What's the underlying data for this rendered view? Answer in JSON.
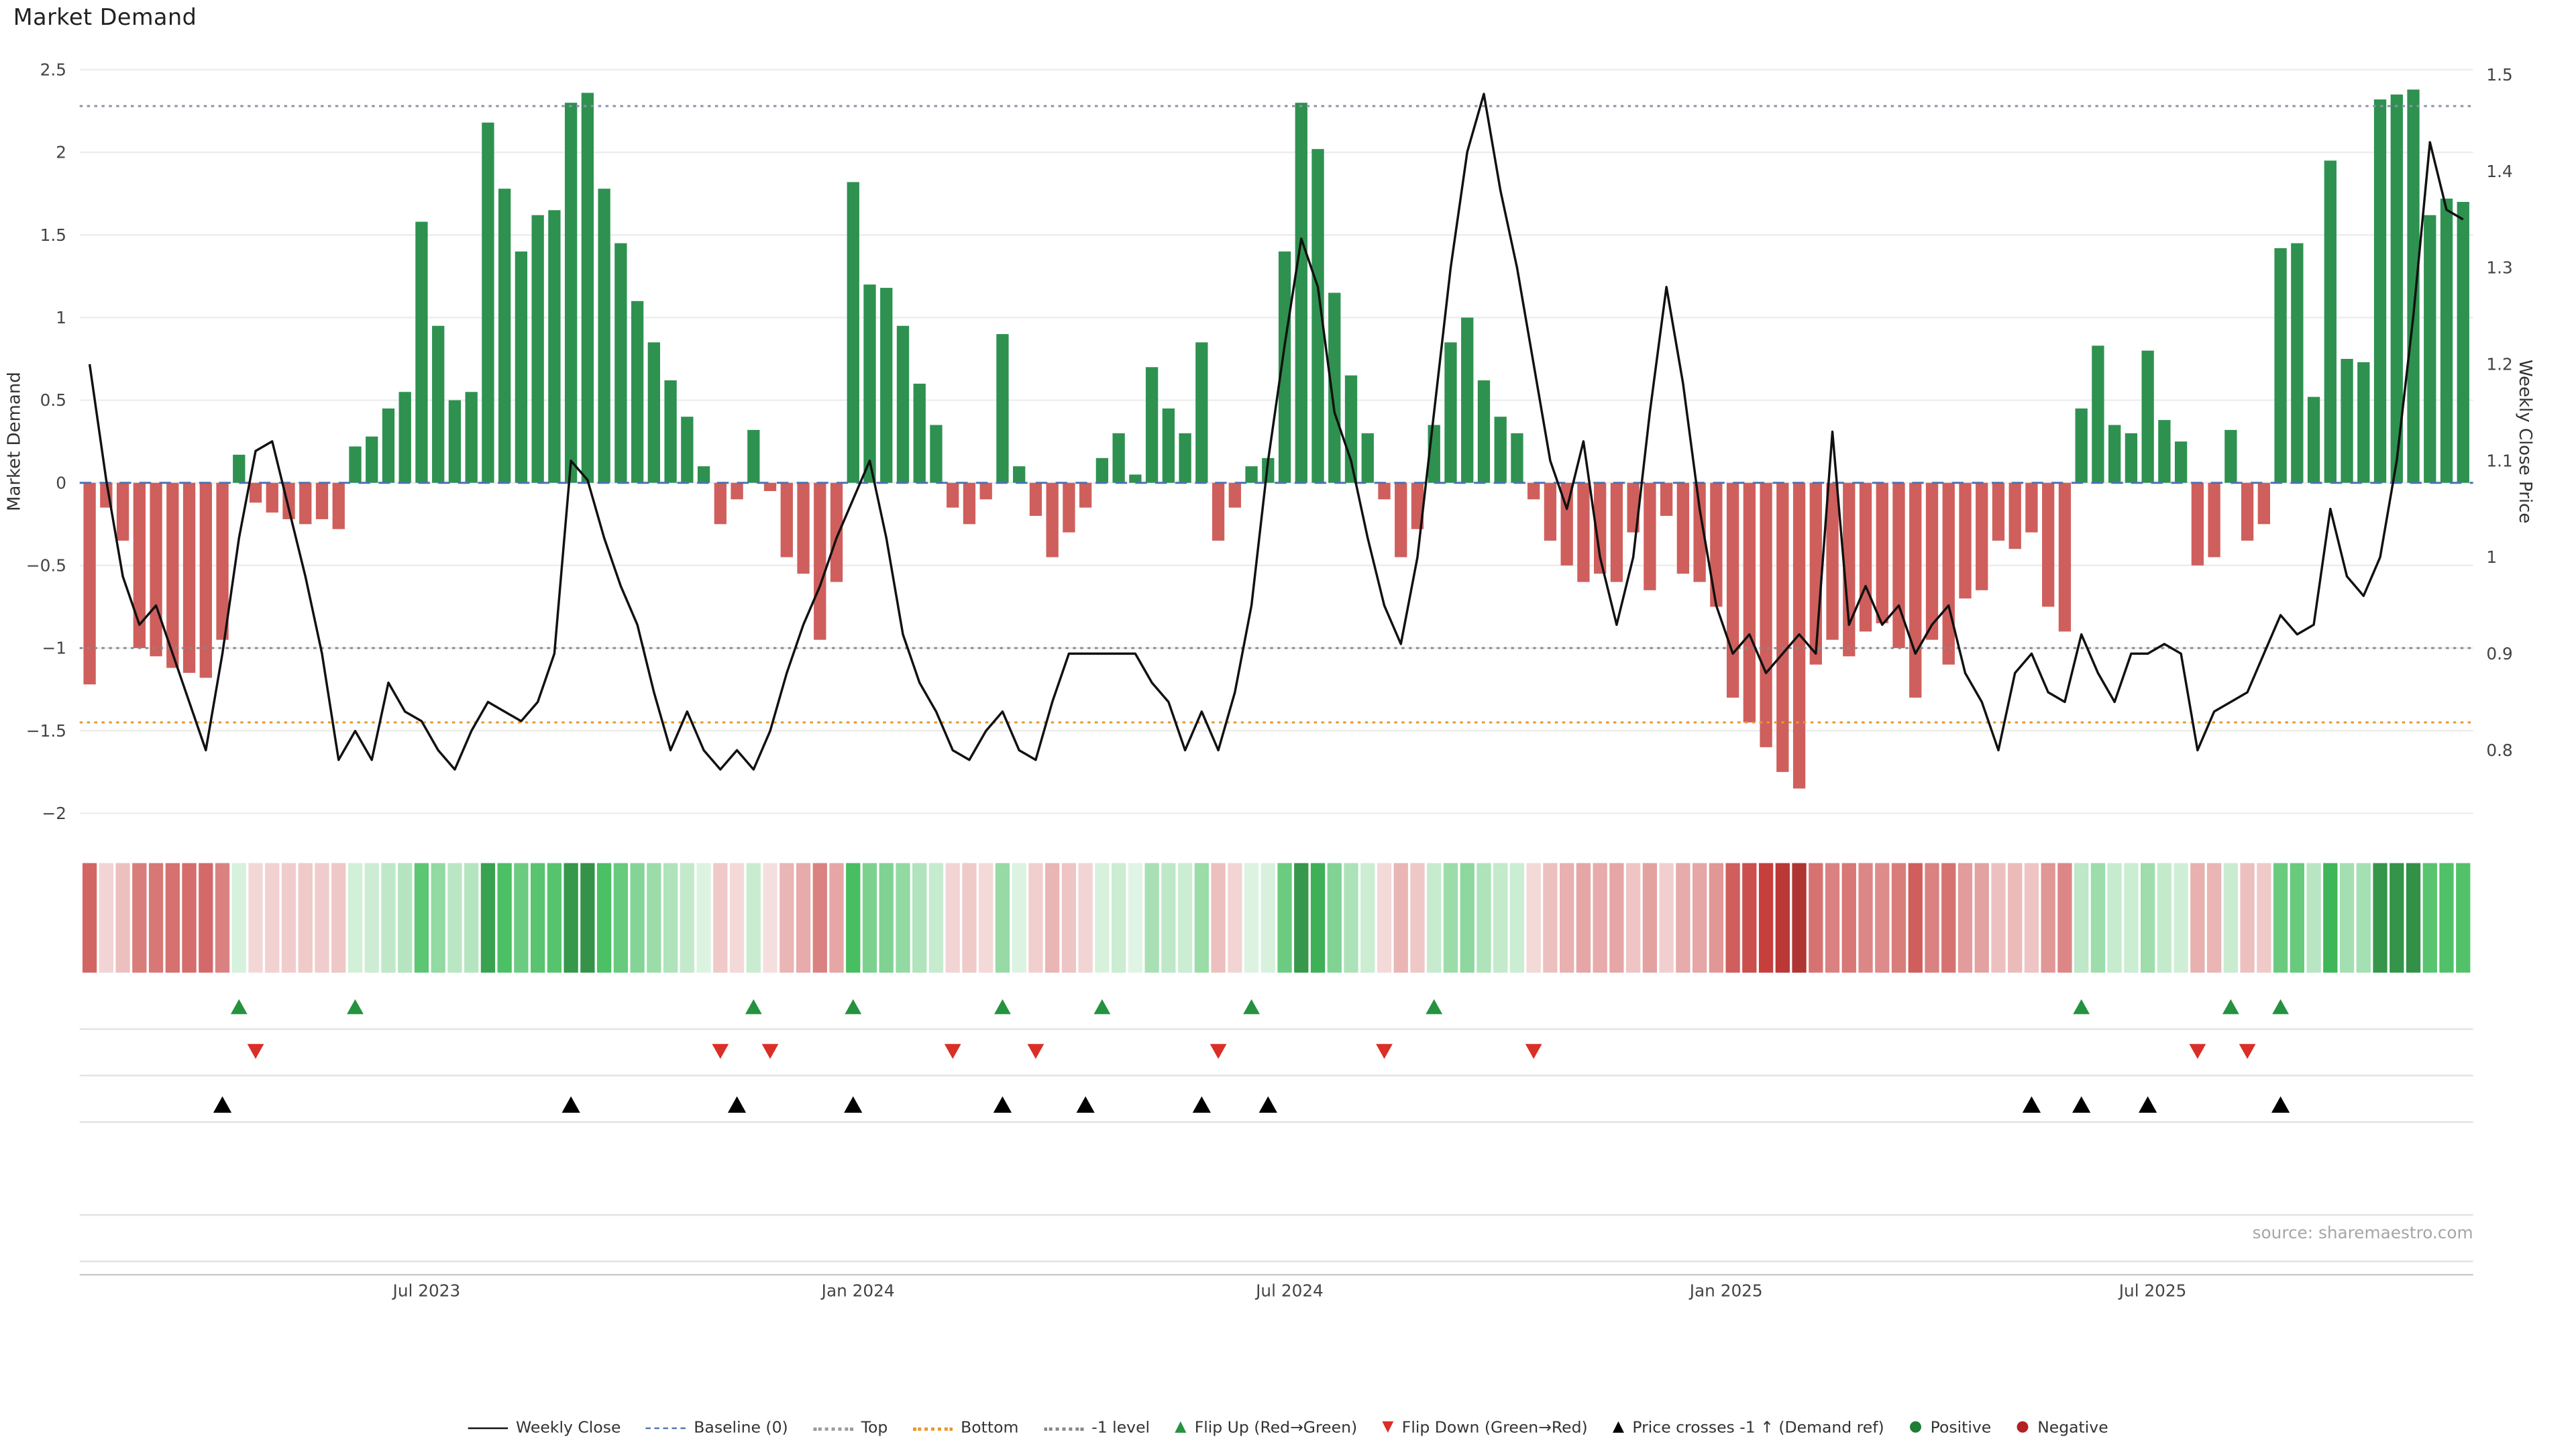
{
  "title": "Market Demand",
  "source": "source: sharemaestro.com",
  "axes": {
    "left_label": "Market Demand",
    "right_label": "Weekly Close Price",
    "left_ticks": [
      {
        "v": 2.5,
        "label": "2.5"
      },
      {
        "v": 2.0,
        "label": "2"
      },
      {
        "v": 1.5,
        "label": "1.5"
      },
      {
        "v": 1.0,
        "label": "1"
      },
      {
        "v": 0.5,
        "label": "0.5"
      },
      {
        "v": 0.0,
        "label": "0"
      },
      {
        "v": -0.5,
        "label": "−0.5"
      },
      {
        "v": -1.0,
        "label": "−1"
      },
      {
        "v": -1.5,
        "label": "−1.5"
      },
      {
        "v": -2.0,
        "label": "−2"
      }
    ],
    "right_ticks": [
      {
        "v": 1.5,
        "label": "1.5"
      },
      {
        "v": 1.4,
        "label": "1.4"
      },
      {
        "v": 1.3,
        "label": "1.3"
      },
      {
        "v": 1.2,
        "label": "1.2"
      },
      {
        "v": 1.1,
        "label": "1.1"
      },
      {
        "v": 1.0,
        "label": "1"
      },
      {
        "v": 0.9,
        "label": "0.9"
      },
      {
        "v": 0.8,
        "label": "0.8"
      }
    ],
    "x_ticks": [
      {
        "i": 20.3,
        "label": "Jul 2023"
      },
      {
        "i": 46.3,
        "label": "Jan 2024"
      },
      {
        "i": 72.3,
        "label": "Jul 2024"
      },
      {
        "i": 98.6,
        "label": "Jan 2025"
      },
      {
        "i": 124.3,
        "label": "Jul 2025"
      }
    ]
  },
  "chart_data": {
    "type": "bar+line",
    "title": "Market Demand",
    "n_weeks": 144,
    "left_axis": {
      "label": "Market Demand",
      "range": [
        -2.0,
        2.5
      ],
      "grid": true
    },
    "right_axis": {
      "label": "Weekly Close Price",
      "range": [
        0.735,
        1.505
      ]
    },
    "series": [
      {
        "name": "Market Demand",
        "type": "bar",
        "axis": "left",
        "values": [
          -1.22,
          -0.15,
          -0.35,
          -1.0,
          -1.05,
          -1.12,
          -1.15,
          -1.18,
          -0.95,
          0.17,
          -0.12,
          -0.18,
          -0.22,
          -0.25,
          -0.22,
          -0.28,
          0.22,
          0.28,
          0.45,
          0.55,
          1.58,
          0.95,
          0.5,
          0.55,
          2.18,
          1.78,
          1.4,
          1.62,
          1.65,
          2.3,
          2.36,
          1.78,
          1.45,
          1.1,
          0.85,
          0.62,
          0.4,
          0.1,
          -0.25,
          -0.1,
          0.32,
          -0.05,
          -0.45,
          -0.55,
          -0.95,
          -0.6,
          1.82,
          1.2,
          1.18,
          0.95,
          0.6,
          0.35,
          -0.15,
          -0.25,
          -0.1,
          0.9,
          0.1,
          -0.2,
          -0.45,
          -0.3,
          -0.15,
          0.15,
          0.3,
          0.05,
          0.7,
          0.45,
          0.3,
          0.85,
          -0.35,
          -0.15,
          0.1,
          0.15,
          1.4,
          2.3,
          2.02,
          1.15,
          0.65,
          0.3,
          -0.1,
          -0.45,
          -0.28,
          0.35,
          0.85,
          1.0,
          0.62,
          0.4,
          0.3,
          -0.1,
          -0.35,
          -0.5,
          -0.6,
          -0.55,
          -0.6,
          -0.3,
          -0.65,
          -0.2,
          -0.55,
          -0.6,
          -0.75,
          -1.3,
          -1.45,
          -1.6,
          -1.75,
          -1.85,
          -1.1,
          -0.95,
          -1.05,
          -0.9,
          -0.85,
          -1.0,
          -1.3,
          -0.95,
          -1.1,
          -0.7,
          -0.65,
          -0.35,
          -0.4,
          -0.3,
          -0.75,
          -0.9,
          0.45,
          0.83,
          0.35,
          0.3,
          0.8,
          0.38,
          0.25,
          -0.5,
          -0.45,
          0.32,
          -0.35,
          -0.25,
          1.42,
          1.45,
          0.52,
          1.95,
          0.75,
          0.73,
          2.32,
          2.35,
          2.38,
          1.62,
          1.72,
          1.7
        ]
      },
      {
        "name": "Weekly Close",
        "type": "line",
        "axis": "right",
        "values": [
          1.2,
          1.08,
          0.98,
          0.93,
          0.95,
          0.9,
          0.85,
          0.8,
          0.9,
          1.02,
          1.11,
          1.12,
          1.05,
          0.98,
          0.9,
          0.79,
          0.82,
          0.79,
          0.87,
          0.84,
          0.83,
          0.8,
          0.78,
          0.82,
          0.85,
          0.84,
          0.83,
          0.85,
          0.9,
          1.1,
          1.08,
          1.02,
          0.97,
          0.93,
          0.86,
          0.8,
          0.84,
          0.8,
          0.78,
          0.8,
          0.78,
          0.82,
          0.88,
          0.93,
          0.97,
          1.02,
          1.06,
          1.1,
          1.02,
          0.92,
          0.87,
          0.84,
          0.8,
          0.79,
          0.82,
          0.84,
          0.8,
          0.79,
          0.85,
          0.9,
          0.9,
          0.9,
          0.9,
          0.9,
          0.87,
          0.85,
          0.8,
          0.84,
          0.8,
          0.86,
          0.95,
          1.1,
          1.22,
          1.33,
          1.28,
          1.15,
          1.1,
          1.02,
          0.95,
          0.91,
          1.0,
          1.15,
          1.3,
          1.42,
          1.48,
          1.38,
          1.3,
          1.2,
          1.1,
          1.05,
          1.12,
          1.0,
          0.93,
          1.0,
          1.15,
          1.28,
          1.18,
          1.05,
          0.95,
          0.9,
          0.92,
          0.88,
          0.9,
          0.92,
          0.9,
          1.13,
          0.93,
          0.97,
          0.93,
          0.95,
          0.9,
          0.93,
          0.95,
          0.88,
          0.85,
          0.8,
          0.88,
          0.9,
          0.86,
          0.85,
          0.92,
          0.88,
          0.85,
          0.9,
          0.9,
          0.91,
          0.9,
          0.8,
          0.84,
          0.85,
          0.86,
          0.9,
          0.94,
          0.92,
          0.93,
          1.05,
          0.98,
          0.96,
          1.0,
          1.1,
          1.25,
          1.43,
          1.36,
          1.35
        ]
      }
    ],
    "ref_lines": [
      {
        "name": "Baseline (0)",
        "value": 0.0,
        "style": "dashed",
        "color": "#4c72b0"
      },
      {
        "name": "Top",
        "value": 2.28,
        "style": "dotted",
        "color": "#9090a8"
      },
      {
        "name": "Bottom",
        "value": -1.45,
        "style": "dotted",
        "color": "#e8972e"
      },
      {
        "name": "-1 level",
        "value": -1.0,
        "style": "dotted",
        "color": "#888888"
      }
    ],
    "markers": {
      "flip_up_weeks": [
        9,
        16,
        40,
        46,
        55,
        61,
        70,
        81,
        120,
        129,
        132
      ],
      "flip_down_weeks": [
        10,
        38,
        41,
        52,
        57,
        68,
        78,
        87,
        127,
        130
      ],
      "price_cross_weeks": [
        8,
        29,
        39,
        46,
        55,
        60,
        67,
        71,
        117,
        120,
        124,
        132
      ]
    },
    "heatmap_strip": "per-week cells colored by Market Demand value (green positive, red negative, intensity by magnitude)"
  },
  "colors": {
    "positive": "#2e9150",
    "negative": "#cf5f5c",
    "price_line": "#111111",
    "baseline": "#4c72b0",
    "top": "#9090a8",
    "bottom": "#e8972e",
    "minus1": "#888888",
    "flip_up": "#24923f",
    "flip_down": "#d92f27",
    "price_cross": "#000000",
    "grid": "#ededed",
    "row_line": "#e3e3e3",
    "tick_text": "#444444",
    "source_text": "#a6a6a6"
  },
  "legend": {
    "items": [
      {
        "kind": "line-solid",
        "color": "#111111",
        "label": "Weekly Close"
      },
      {
        "kind": "line-dashed",
        "color": "#4c72b0",
        "label": "Baseline (0)"
      },
      {
        "kind": "line-dotted",
        "color": "#9b9b9b",
        "label": "Top"
      },
      {
        "kind": "line-dotted",
        "color": "#e8972e",
        "label": "Bottom"
      },
      {
        "kind": "line-dotted",
        "color": "#888888",
        "label": "-1 level"
      },
      {
        "kind": "tri-up",
        "color": "#24923f",
        "label": "Flip Up (Red→Green)"
      },
      {
        "kind": "tri-down",
        "color": "#d92f27",
        "label": "Flip Down (Green→Red)"
      },
      {
        "kind": "tri-up",
        "color": "#000000",
        "label": "Price crosses -1 ↑ (Demand ref)"
      },
      {
        "kind": "dot",
        "color": "#1e7e34",
        "label": "Positive"
      },
      {
        "kind": "dot",
        "color": "#b22222",
        "label": "Negative"
      }
    ]
  }
}
